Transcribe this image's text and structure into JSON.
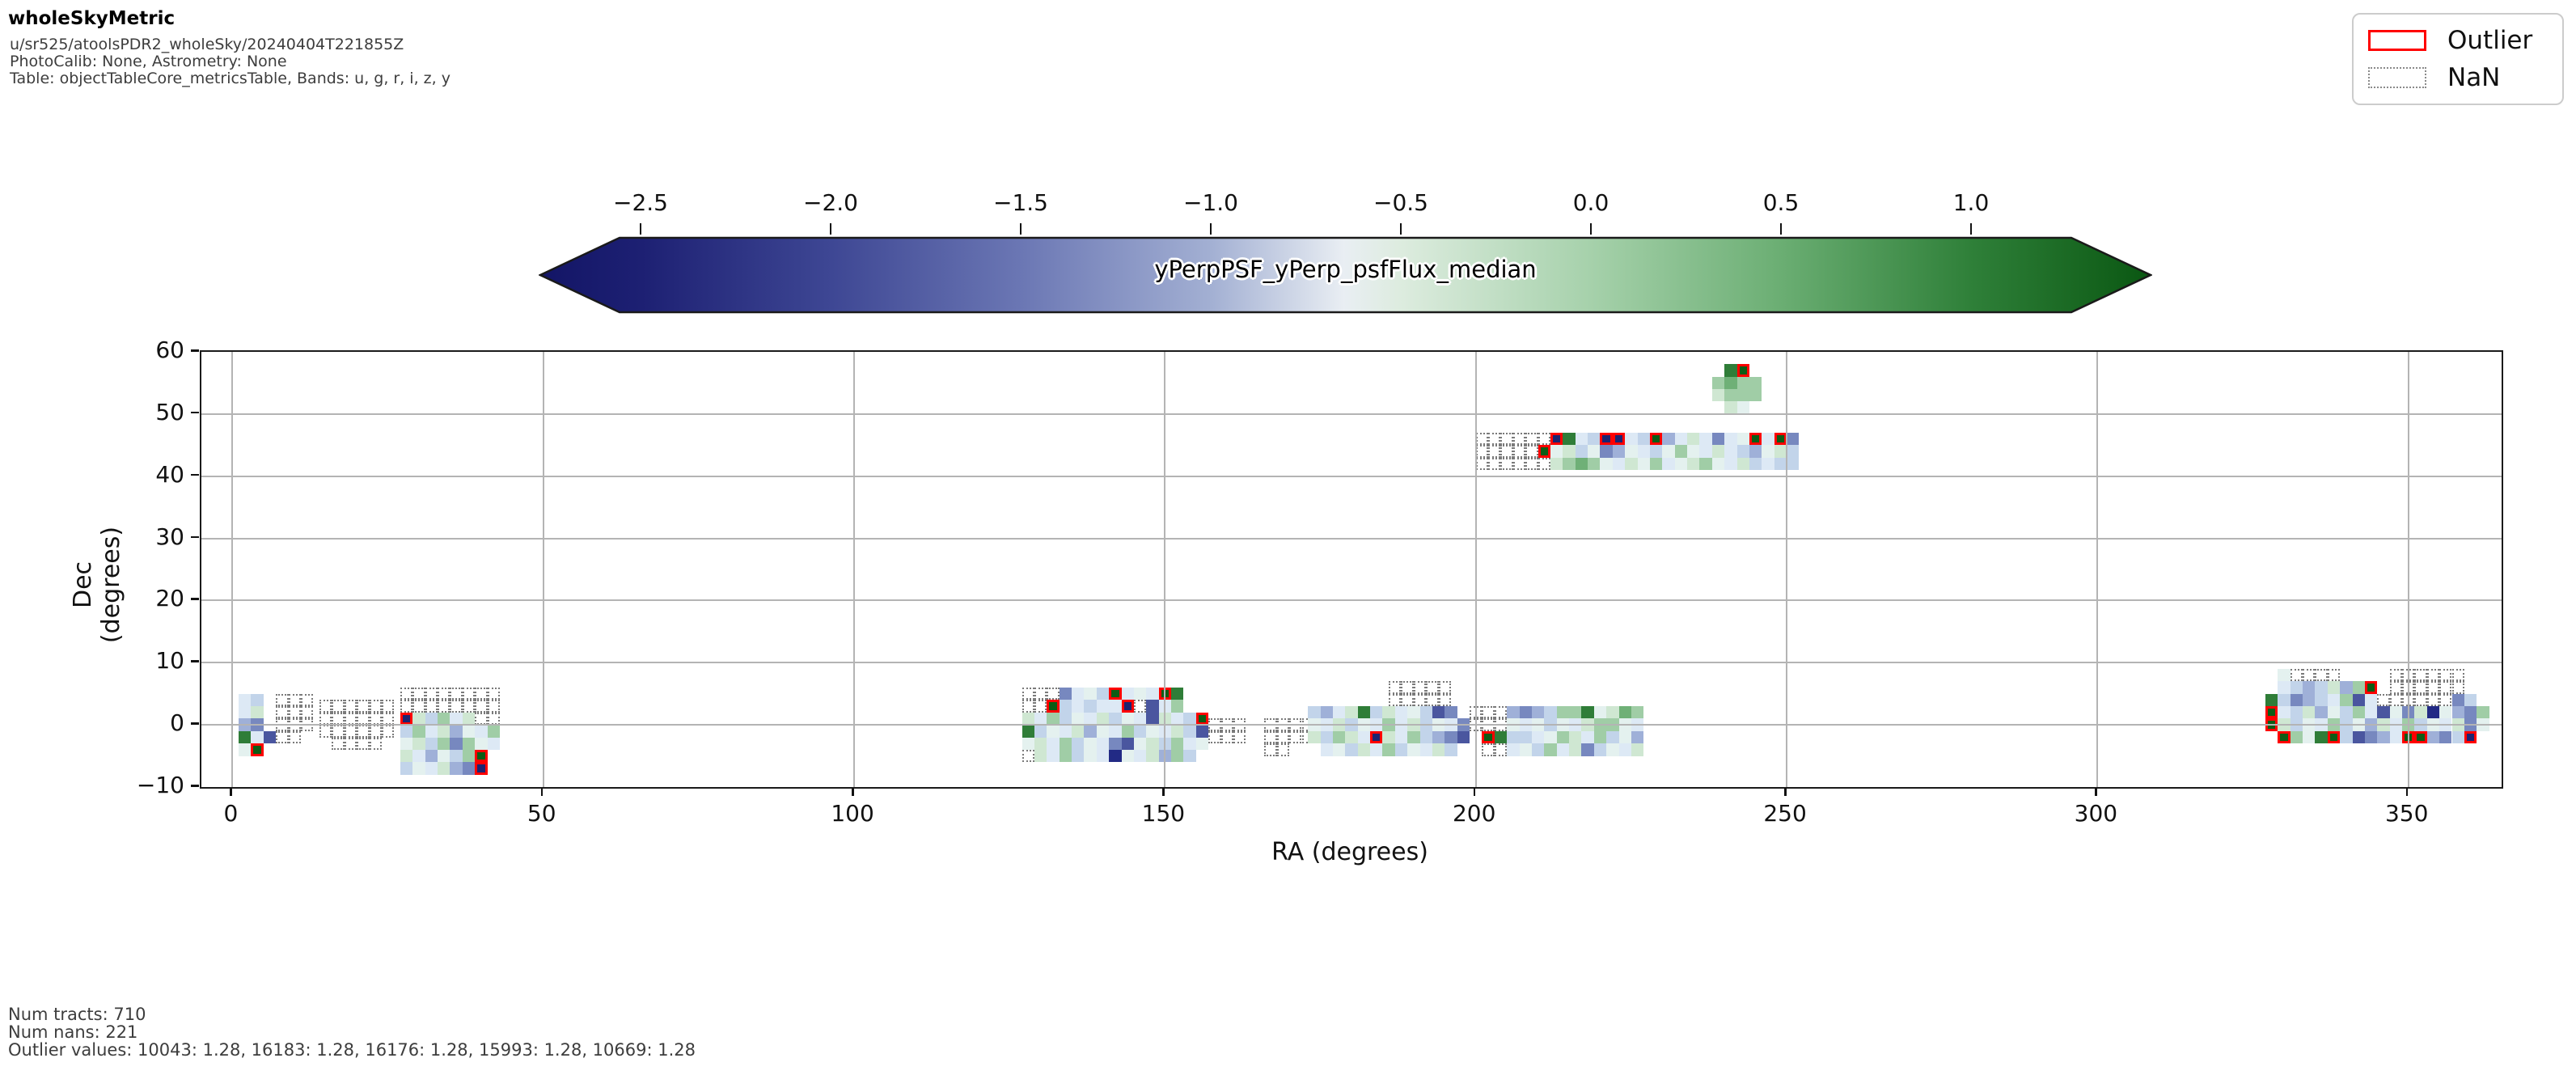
{
  "header": {
    "title": "wholeSkyMetric",
    "meta": [
      "u/sr525/atoolsPDR2_wholeSky/20240404T221855Z",
      "PhotoCalib: None, Astrometry: None",
      "Table: objectTableCore_metricsTable, Bands: u, g, r, i, z, y"
    ]
  },
  "legend": {
    "items": [
      {
        "label": "Outlier",
        "style": "outlier",
        "swatch_border_color": "#ff0000"
      },
      {
        "label": "NaN",
        "style": "nan",
        "swatch_border_color": "#8a8a8a"
      }
    ]
  },
  "footer": {
    "lines": [
      "Num tracts: 710",
      "Num nans: 221",
      "Outlier values: 10043: 1.28, 16183: 1.28, 16176: 1.28, 15993: 1.28, 10669: 1.28"
    ]
  },
  "chart_data": {
    "type": "heatmap",
    "title": "wholeSkyMetric",
    "xlabel": "RA (degrees)",
    "ylabel": "Dec (degrees)",
    "xlim": [
      -5,
      365
    ],
    "ylim": [
      -10,
      60
    ],
    "grid": true,
    "x_ticks": [
      0,
      50,
      100,
      150,
      200,
      250,
      300,
      350
    ],
    "y_ticks": [
      60,
      50,
      40,
      30,
      20,
      10,
      0,
      -10
    ],
    "y_tick_labels": [
      "60",
      "50",
      "40",
      "30",
      "20",
      "10",
      "0",
      "−10"
    ],
    "x_tick_labels": [
      "0",
      "50",
      "100",
      "150",
      "200",
      "250",
      "300",
      "350"
    ],
    "colorbar": {
      "label": "yPerpPSF_yPerp_psfFlux_median",
      "ticks": [
        -2.5,
        -2.0,
        -1.5,
        -1.0,
        -0.5,
        0.0,
        0.5,
        1.0
      ],
      "tick_labels": [
        "−2.5",
        "−2.0",
        "−1.5",
        "−1.0",
        "−0.5",
        "0.0",
        "0.5",
        "1.0"
      ],
      "extend": "both",
      "gradient_stops": [
        [
          0,
          "#131566"
        ],
        [
          6.3,
          "#1d2073"
        ],
        [
          18.1,
          "#3e4794"
        ],
        [
          29.9,
          "#6b77b4"
        ],
        [
          41.7,
          "#a3b0d3"
        ],
        [
          49.9,
          "#e9eef3"
        ],
        [
          53.4,
          "#ddecdf"
        ],
        [
          65.2,
          "#a6d1ab"
        ],
        [
          77.0,
          "#6bae73"
        ],
        [
          88.8,
          "#2f8039"
        ],
        [
          100,
          "#0a5712"
        ]
      ]
    },
    "palette": {
      "1": "#dde9f5",
      "2": "#c2d4ea",
      "3": "#9fb0d8",
      "4": "#7788bf",
      "5": "#4a569f",
      "6": "#222a85",
      "a": "#e4f1ef",
      "b": "#cfe7d2",
      "c": "#a0cda6",
      "d": "#6fb077",
      "e": "#2f7d38",
      "X": "#1d2370",
      "Y": "#0d5c15"
    },
    "legend_colors": {
      "outlier_border": "#ff0000",
      "nan_border": "#7a7a7a"
    },
    "cell_deg": 2,
    "patches": [
      {
        "ra0": 1,
        "dec_top": 5,
        "rows": [
          "12.",
          "1b.",
          "34.",
          "e15",
          "aY."
        ]
      },
      {
        "ra0": 7,
        "dec_top": 5,
        "rows": [
          "nnn",
          "nnn",
          "nnn",
          "nn."
        ]
      },
      {
        "ra0": 14,
        "dec_top": 4,
        "rows": [
          "nnnnnn",
          "nnnnnn",
          "nnnnnn",
          ".nnnn."
        ]
      },
      {
        "ra0": 27,
        "dec_top": 6,
        "rows": [
          "nnnnnnnn",
          "nnnnnnnn",
          "Xb2c1bnn",
          "2c1b3a1c",
          "ab2c4ca1",
          "b13a2cY.",
          "2a1b34X."
        ]
      },
      {
        "ra0": 127,
        "dec_top": 6,
        "rows": [
          "nnn41a2Y1a1Ye..",
          "nnY21211Xn51c..",
          "b1c2a1b2a15b12Y",
          "e2a1b3a1c2a1b25",
          "ab1c2a145ab2c1a",
          "nb1c2a16a1b3c2."
        ]
      },
      {
        "ra0": 157,
        "dec_top": 1,
        "rows": [
          "nnn",
          "nnn"
        ]
      },
      {
        "ra0": 166,
        "dec_top": 1,
        "rows": [
          "nnnn",
          "nnnn",
          "nn.."
        ]
      },
      {
        "ra0": 173,
        "dec_top": 3,
        "rows": [
          "231be2b1a254.",
          "a1b2a1c1b2a14",
          "b2cb1Xb1c2345",
          ".1a2b1c2a1b2."
        ]
      },
      {
        "ra0": 186,
        "dec_top": 7,
        "rows": [
          "nnnnn",
          "nnnnn"
        ]
      },
      {
        "ra0": 199,
        "dec_top": 3,
        "rows": [
          "nnn",
          "nnn",
          ".Ye",
          ".nn"
        ]
      },
      {
        "ra0": 205,
        "dec_top": 3,
        "rows": [
          "3432cceabdc",
          "a1a2a1bcca1",
          "221acb1c2a3",
          "1a2c1b42a1b"
        ]
      },
      {
        "ra0": 200,
        "dec_top": 47,
        "rows": [
          "nnnnnnXe12XX12Y31b141aY1Y4",
          "nnnnnYab2a43a12aca1b123ab2",
          "nnnnnnbcdca1bac1abca1b2122"
        ]
      },
      {
        "ra0": 238,
        "dec_top": 58,
        "rows": [
          ".eY...",
          "cdcc..",
          "bccc..",
          ".ba..."
        ]
      },
      {
        "ra0": 327,
        "dec_top": 9,
        "rows": [
          ".annnn....nnnnnn..",
          ".1232b3cY.nnnnnn..",
          "e24321c51nnnnnn42.",
          "Y12b3a2c15a4b6a34c",
          "Yb2a1c2a3b1c2a1b4a",
          ".YcaeY25431YY342X."
        ]
      }
    ],
    "annotations": {
      "num_tracts": 710,
      "num_nans": 221,
      "outlier_values": {
        "10043": 1.28,
        "16183": 1.28,
        "16176": 1.28,
        "15993": 1.28,
        "10669": 1.28
      }
    }
  }
}
